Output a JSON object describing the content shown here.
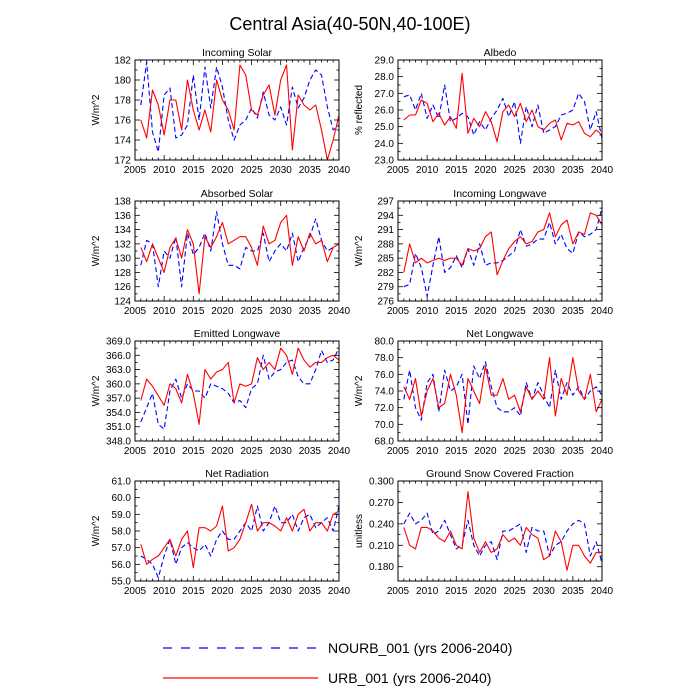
{
  "title": "Central Asia(40-50N,40-100E)",
  "legend": [
    {
      "label": "NOURB_001 (yrs 2006-2040)",
      "color": "#0000ff",
      "dash": true
    },
    {
      "label": "URB_001 (yrs 2006-2040)",
      "color": "#ff0000",
      "dash": false
    }
  ],
  "chart_data": [
    {
      "type": "line",
      "title": "Incoming Solar",
      "ylabel": "W/m^2",
      "ylim": [
        172,
        182
      ],
      "yticks": [
        172,
        174,
        176,
        178,
        180,
        182
      ],
      "ydec": 0,
      "xlim": [
        2005,
        2040
      ],
      "xticks": [
        2005,
        2010,
        2015,
        2020,
        2025,
        2030,
        2035,
        2040
      ],
      "x_start": 2006,
      "series": [
        {
          "name": "NOURB_001",
          "color": "#0000ff",
          "dash": true,
          "values": [
            177.5,
            181.8,
            174.8,
            172.8,
            178.5,
            179.2,
            174.2,
            174.5,
            175.5,
            180.5,
            176.0,
            181.3,
            177.2,
            181.3,
            179.3,
            176.0,
            174.0,
            175.5,
            176.0,
            177.2,
            176.2,
            178.8,
            176.5,
            176.0,
            177.3,
            175.5,
            179.3,
            177.2,
            178.2,
            180.0,
            181.0,
            180.5,
            177.3,
            175.0,
            175.5
          ]
        },
        {
          "name": "URB_001",
          "color": "#ff0000",
          "dash": false,
          "values": [
            176.0,
            174.2,
            179.0,
            177.5,
            174.5,
            178.0,
            178.0,
            175.0,
            180.0,
            177.0,
            175.0,
            177.0,
            174.8,
            180.0,
            178.0,
            177.0,
            175.0,
            181.5,
            180.5,
            177.0,
            176.5,
            178.5,
            179.5,
            176.5,
            180.0,
            181.5,
            173.0,
            178.5,
            177.5,
            177.0,
            177.5,
            175.0,
            172.0,
            174.0,
            176.5
          ]
        }
      ]
    },
    {
      "type": "line",
      "title": "Albedo",
      "ylabel": "% reflected",
      "ylim": [
        23.0,
        29.0
      ],
      "yticks": [
        23.0,
        24.0,
        25.0,
        26.0,
        27.0,
        28.0,
        29.0
      ],
      "ydec": 1,
      "xlim": [
        2005,
        2040
      ],
      "xticks": [
        2005,
        2010,
        2015,
        2020,
        2025,
        2030,
        2035,
        2040
      ],
      "x_start": 2006,
      "series": [
        {
          "name": "NOURB_001",
          "color": "#0000ff",
          "dash": true,
          "values": [
            26.8,
            26.9,
            26.0,
            27.0,
            25.5,
            26.3,
            25.5,
            27.5,
            25.3,
            25.5,
            25.8,
            25.6,
            24.5,
            25.3,
            24.8,
            25.5,
            26.0,
            26.7,
            25.6,
            26.5,
            24.0,
            26.2,
            25.0,
            26.3,
            24.6,
            24.8,
            25.0,
            25.7,
            25.8,
            26.0,
            27.0,
            26.5,
            24.8,
            25.9,
            24.3
          ]
        },
        {
          "name": "URB_001",
          "color": "#ff0000",
          "dash": false,
          "values": [
            25.4,
            25.7,
            25.7,
            26.6,
            26.4,
            25.3,
            25.8,
            25.1,
            25.6,
            24.9,
            28.2,
            24.6,
            25.5,
            25.0,
            25.9,
            25.3,
            24.1,
            25.9,
            26.3,
            25.6,
            26.4,
            25.3,
            26.0,
            25.0,
            24.8,
            25.2,
            25.4,
            24.2,
            25.2,
            25.1,
            25.3,
            24.6,
            24.4,
            24.8,
            24.5
          ]
        }
      ]
    },
    {
      "type": "line",
      "title": "Absorbed Solar",
      "ylabel": "W/m^2",
      "ylim": [
        124,
        138
      ],
      "yticks": [
        124,
        126,
        128,
        130,
        132,
        134,
        136,
        138
      ],
      "ydec": 0,
      "xlim": [
        2005,
        2040
      ],
      "xticks": [
        2005,
        2010,
        2015,
        2020,
        2025,
        2030,
        2035,
        2040
      ],
      "x_start": 2006,
      "series": [
        {
          "name": "NOURB_001",
          "color": "#0000ff",
          "dash": true,
          "values": [
            129.0,
            132.5,
            132.0,
            126.0,
            131.0,
            130.0,
            133.0,
            126.0,
            133.5,
            130.5,
            131.5,
            133.5,
            131.0,
            136.5,
            132.0,
            129.0,
            129.0,
            128.5,
            131.5,
            131.0,
            131.0,
            133.5,
            129.5,
            131.0,
            132.0,
            131.0,
            133.5,
            129.5,
            131.5,
            133.0,
            135.5,
            132.5,
            131.0,
            131.5,
            132.0
          ]
        },
        {
          "name": "URB_001",
          "color": "#ff0000",
          "dash": false,
          "values": [
            131.5,
            129.5,
            132.0,
            130.0,
            128.0,
            131.5,
            132.8,
            130.0,
            134.0,
            132.0,
            125.0,
            133.0,
            131.5,
            133.0,
            135.0,
            132.0,
            132.5,
            133.0,
            133.0,
            131.5,
            129.0,
            134.5,
            132.0,
            132.5,
            135.0,
            136.0,
            129.0,
            133.0,
            131.0,
            133.5,
            132.0,
            132.5,
            129.5,
            131.5,
            132.0
          ]
        }
      ]
    },
    {
      "type": "line",
      "title": "Incoming Longwave",
      "ylabel": "W/m^2",
      "ylim": [
        276,
        297
      ],
      "yticks": [
        276,
        279,
        282,
        285,
        288,
        291,
        294,
        297
      ],
      "ydec": 0,
      "xlim": [
        2005,
        2040
      ],
      "xticks": [
        2005,
        2010,
        2015,
        2020,
        2025,
        2030,
        2035,
        2040
      ],
      "x_start": 2006,
      "series": [
        {
          "name": "NOURB_001",
          "color": "#0000ff",
          "dash": true,
          "values": [
            279.0,
            279.5,
            286.0,
            283.0,
            277.0,
            283.5,
            289.5,
            282.0,
            283.0,
            285.5,
            283.0,
            287.0,
            283.5,
            288.0,
            283.5,
            284.0,
            284.0,
            284.5,
            285.5,
            286.5,
            291.0,
            287.5,
            288.0,
            289.0,
            289.0,
            292.5,
            288.0,
            290.0,
            287.0,
            286.0,
            290.5,
            289.5,
            290.0,
            291.0,
            295.5
          ]
        },
        {
          "name": "URB_001",
          "color": "#ff0000",
          "dash": false,
          "values": [
            282.0,
            288.0,
            284.0,
            285.0,
            284.0,
            284.5,
            285.0,
            284.5,
            285.0,
            285.0,
            283.5,
            287.0,
            286.5,
            287.0,
            289.5,
            290.5,
            281.5,
            284.5,
            287.0,
            288.5,
            289.5,
            288.0,
            288.5,
            290.5,
            291.0,
            294.5,
            289.5,
            292.0,
            293.0,
            288.0,
            290.5,
            290.0,
            294.5,
            294.0,
            292.0
          ]
        }
      ]
    },
    {
      "type": "line",
      "title": "Emitted Longwave",
      "ylabel": "W/m^2",
      "ylim": [
        348.0,
        369.0
      ],
      "yticks": [
        348.0,
        351.0,
        354.0,
        357.0,
        360.0,
        363.0,
        366.0,
        369.0
      ],
      "ydec": 1,
      "xlim": [
        2005,
        2040
      ],
      "xticks": [
        2005,
        2010,
        2015,
        2020,
        2025,
        2030,
        2035,
        2040
      ],
      "x_start": 2006,
      "series": [
        {
          "name": "NOURB_001",
          "color": "#0000ff",
          "dash": true,
          "values": [
            352.0,
            355.0,
            358.0,
            351.5,
            350.5,
            358.5,
            361.0,
            357.0,
            360.0,
            358.5,
            358.5,
            357.0,
            360.0,
            359.5,
            359.0,
            358.0,
            356.0,
            356.5,
            355.0,
            359.0,
            360.0,
            366.0,
            361.0,
            362.5,
            363.0,
            364.5,
            365.0,
            361.5,
            360.0,
            360.0,
            363.0,
            367.0,
            364.5,
            365.0,
            367.5
          ]
        },
        {
          "name": "URB_001",
          "color": "#ff0000",
          "dash": false,
          "values": [
            356.5,
            361.0,
            359.5,
            357.5,
            355.5,
            360.0,
            359.0,
            356.0,
            362.0,
            358.0,
            351.5,
            363.0,
            361.0,
            362.5,
            363.0,
            364.5,
            356.0,
            360.0,
            359.5,
            360.0,
            365.5,
            363.0,
            364.5,
            363.0,
            367.5,
            366.0,
            362.0,
            367.5,
            365.0,
            363.5,
            364.5,
            364.5,
            365.5,
            366.0,
            365.0
          ]
        }
      ]
    },
    {
      "type": "line",
      "title": "Net Longwave",
      "ylabel": "W/m^2",
      "ylim": [
        68.0,
        80.0
      ],
      "yticks": [
        68.0,
        70.0,
        72.0,
        74.0,
        76.0,
        78.0,
        80.0
      ],
      "ydec": 1,
      "xlim": [
        2005,
        2040
      ],
      "xticks": [
        2005,
        2010,
        2015,
        2020,
        2025,
        2030,
        2035,
        2040
      ],
      "x_start": 2006,
      "series": [
        {
          "name": "NOURB_001",
          "color": "#0000ff",
          "dash": true,
          "values": [
            73.0,
            76.5,
            72.0,
            70.5,
            75.0,
            76.0,
            71.5,
            76.5,
            74.0,
            74.5,
            76.0,
            70.0,
            77.0,
            75.5,
            77.5,
            74.5,
            72.0,
            71.5,
            71.5,
            72.0,
            71.0,
            75.0,
            73.0,
            75.0,
            73.5,
            72.0,
            76.5,
            73.0,
            75.0,
            73.5,
            74.5,
            73.0,
            74.0,
            74.5,
            73.5
          ]
        },
        {
          "name": "URB_001",
          "color": "#ff0000",
          "dash": false,
          "values": [
            74.5,
            73.0,
            75.5,
            71.0,
            74.0,
            75.5,
            72.0,
            72.5,
            76.0,
            73.5,
            69.0,
            75.5,
            74.0,
            72.5,
            77.0,
            73.5,
            73.5,
            75.5,
            73.0,
            73.5,
            71.5,
            74.5,
            73.0,
            74.0,
            73.0,
            78.0,
            71.0,
            75.5,
            73.5,
            78.0,
            74.0,
            73.0,
            76.0,
            71.5,
            73.0
          ]
        }
      ]
    },
    {
      "type": "line",
      "title": "Net Radiation",
      "ylabel": "W/m^2",
      "ylim": [
        55.0,
        61.0
      ],
      "yticks": [
        55.0,
        56.0,
        57.0,
        58.0,
        59.0,
        60.0,
        61.0
      ],
      "ydec": 1,
      "xlim": [
        2005,
        2040
      ],
      "xticks": [
        2005,
        2010,
        2015,
        2020,
        2025,
        2030,
        2035,
        2040
      ],
      "x_start": 2006,
      "series": [
        {
          "name": "NOURB_001",
          "color": "#0000ff",
          "dash": true,
          "values": [
            56.5,
            56.3,
            56.0,
            55.2,
            56.5,
            57.5,
            56.0,
            57.0,
            57.3,
            57.0,
            56.8,
            57.2,
            56.5,
            57.5,
            58.0,
            57.5,
            57.5,
            58.0,
            58.5,
            58.0,
            59.5,
            58.0,
            58.5,
            59.5,
            58.5,
            58.5,
            59.0,
            58.0,
            58.8,
            59.0,
            58.2,
            58.5,
            58.8,
            58.0,
            59.5
          ]
        },
        {
          "name": "URB_001",
          "color": "#ff0000",
          "dash": false,
          "values": [
            57.2,
            56.0,
            56.3,
            56.5,
            57.0,
            57.5,
            56.5,
            57.5,
            58.0,
            55.8,
            58.2,
            58.2,
            58.0,
            58.3,
            59.5,
            56.8,
            57.0,
            57.5,
            58.5,
            59.6,
            58.0,
            58.5,
            58.5,
            58.3,
            58.0,
            58.8,
            58.0,
            59.0,
            59.3,
            58.0,
            58.5,
            58.5,
            58.0,
            59.0,
            59.2
          ]
        }
      ]
    },
    {
      "type": "line",
      "title": "Ground Snow Covered Fraction",
      "ylabel": "unitless",
      "ylim": [
        0.16,
        0.3
      ],
      "yticks": [
        0.18,
        0.21,
        0.24,
        0.27,
        0.3
      ],
      "ydec": 3,
      "xlim": [
        2005,
        2040
      ],
      "xticks": [
        2005,
        2010,
        2015,
        2020,
        2025,
        2030,
        2035,
        2040
      ],
      "x_start": 2006,
      "series": [
        {
          "name": "NOURB_001",
          "color": "#0000ff",
          "dash": true,
          "values": [
            0.24,
            0.255,
            0.24,
            0.245,
            0.255,
            0.225,
            0.23,
            0.245,
            0.225,
            0.205,
            0.21,
            0.245,
            0.21,
            0.195,
            0.21,
            0.215,
            0.19,
            0.23,
            0.23,
            0.235,
            0.24,
            0.2,
            0.235,
            0.23,
            0.23,
            0.195,
            0.21,
            0.215,
            0.23,
            0.24,
            0.245,
            0.24,
            0.195,
            0.215,
            0.185
          ]
        },
        {
          "name": "URB_001",
          "color": "#ff0000",
          "dash": false,
          "values": [
            0.235,
            0.21,
            0.205,
            0.235,
            0.235,
            0.23,
            0.22,
            0.215,
            0.23,
            0.21,
            0.205,
            0.285,
            0.22,
            0.2,
            0.215,
            0.2,
            0.205,
            0.225,
            0.215,
            0.22,
            0.21,
            0.235,
            0.225,
            0.22,
            0.19,
            0.195,
            0.23,
            0.215,
            0.175,
            0.21,
            0.21,
            0.195,
            0.185,
            0.2,
            0.2
          ]
        }
      ]
    }
  ]
}
